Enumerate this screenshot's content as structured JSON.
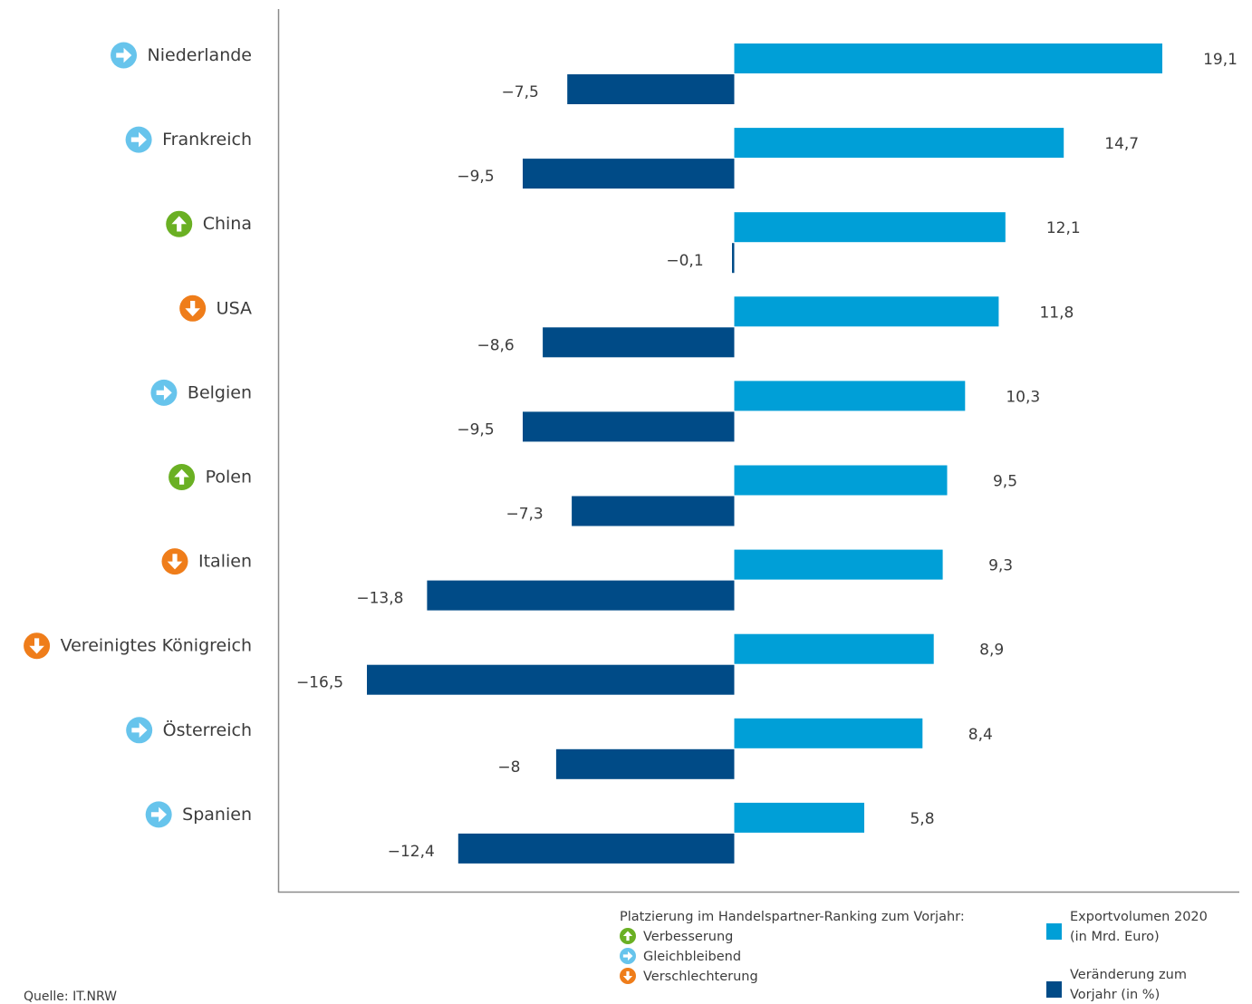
{
  "chart_data": {
    "type": "bar",
    "orientation": "horizontal",
    "categories": [
      "Niederlande",
      "Frankreich",
      "China",
      "USA",
      "Belgien",
      "Polen",
      "Italien",
      "Vereinigtes Königreich",
      "Österreich",
      "Spanien"
    ],
    "ranking_change": [
      "same",
      "same",
      "up",
      "down",
      "same",
      "up",
      "down",
      "down",
      "same",
      "same"
    ],
    "series": [
      {
        "name": "Exportvolumen 2020 (in Mrd. Euro)",
        "color": "#009fd7",
        "values": [
          19.1,
          14.7,
          12.1,
          11.8,
          10.3,
          9.5,
          9.3,
          8.9,
          8.4,
          5.8
        ],
        "labels": [
          "19,1",
          "14,7",
          "12,1",
          "11,8",
          "10,3",
          "9,5",
          "9,3",
          "8,9",
          "8,4",
          "5,8"
        ]
      },
      {
        "name": "Veränderung zum Vorjahr (in %)",
        "color": "#004b87",
        "values": [
          -7.5,
          -9.5,
          -0.1,
          -8.6,
          -9.5,
          -7.3,
          -13.8,
          -16.5,
          -8,
          -12.4
        ],
        "labels": [
          "−7,5",
          "−9,5",
          "−0,1",
          "−8,6",
          "−9,5",
          "−7,3",
          "−13,8",
          "−16,5",
          "−8",
          "−12,4"
        ]
      }
    ],
    "legend": {
      "ranking_title": "Platzierung im Handelspartner-Ranking zum Vorjahr:",
      "ranking_items": [
        {
          "key": "up",
          "label": "Verbesserung",
          "color": "#6ab023",
          "icon": "arrow-up-icon"
        },
        {
          "key": "same",
          "label": "Gleichbleibend",
          "color": "#67c4ec",
          "icon": "arrow-right-icon"
        },
        {
          "key": "down",
          "label": "Verschlechterung",
          "color": "#ef7d1a",
          "icon": "arrow-down-icon"
        }
      ],
      "series_entries": [
        {
          "line1": "Exportvolumen 2020",
          "line2": "(in Mrd. Euro)",
          "color": "#009fd7"
        },
        {
          "line1": "Veränderung zum",
          "line2": "Vorjahr (in %)",
          "color": "#004b87"
        }
      ]
    },
    "source": "Quelle: IT.NRW",
    "grid": false
  }
}
